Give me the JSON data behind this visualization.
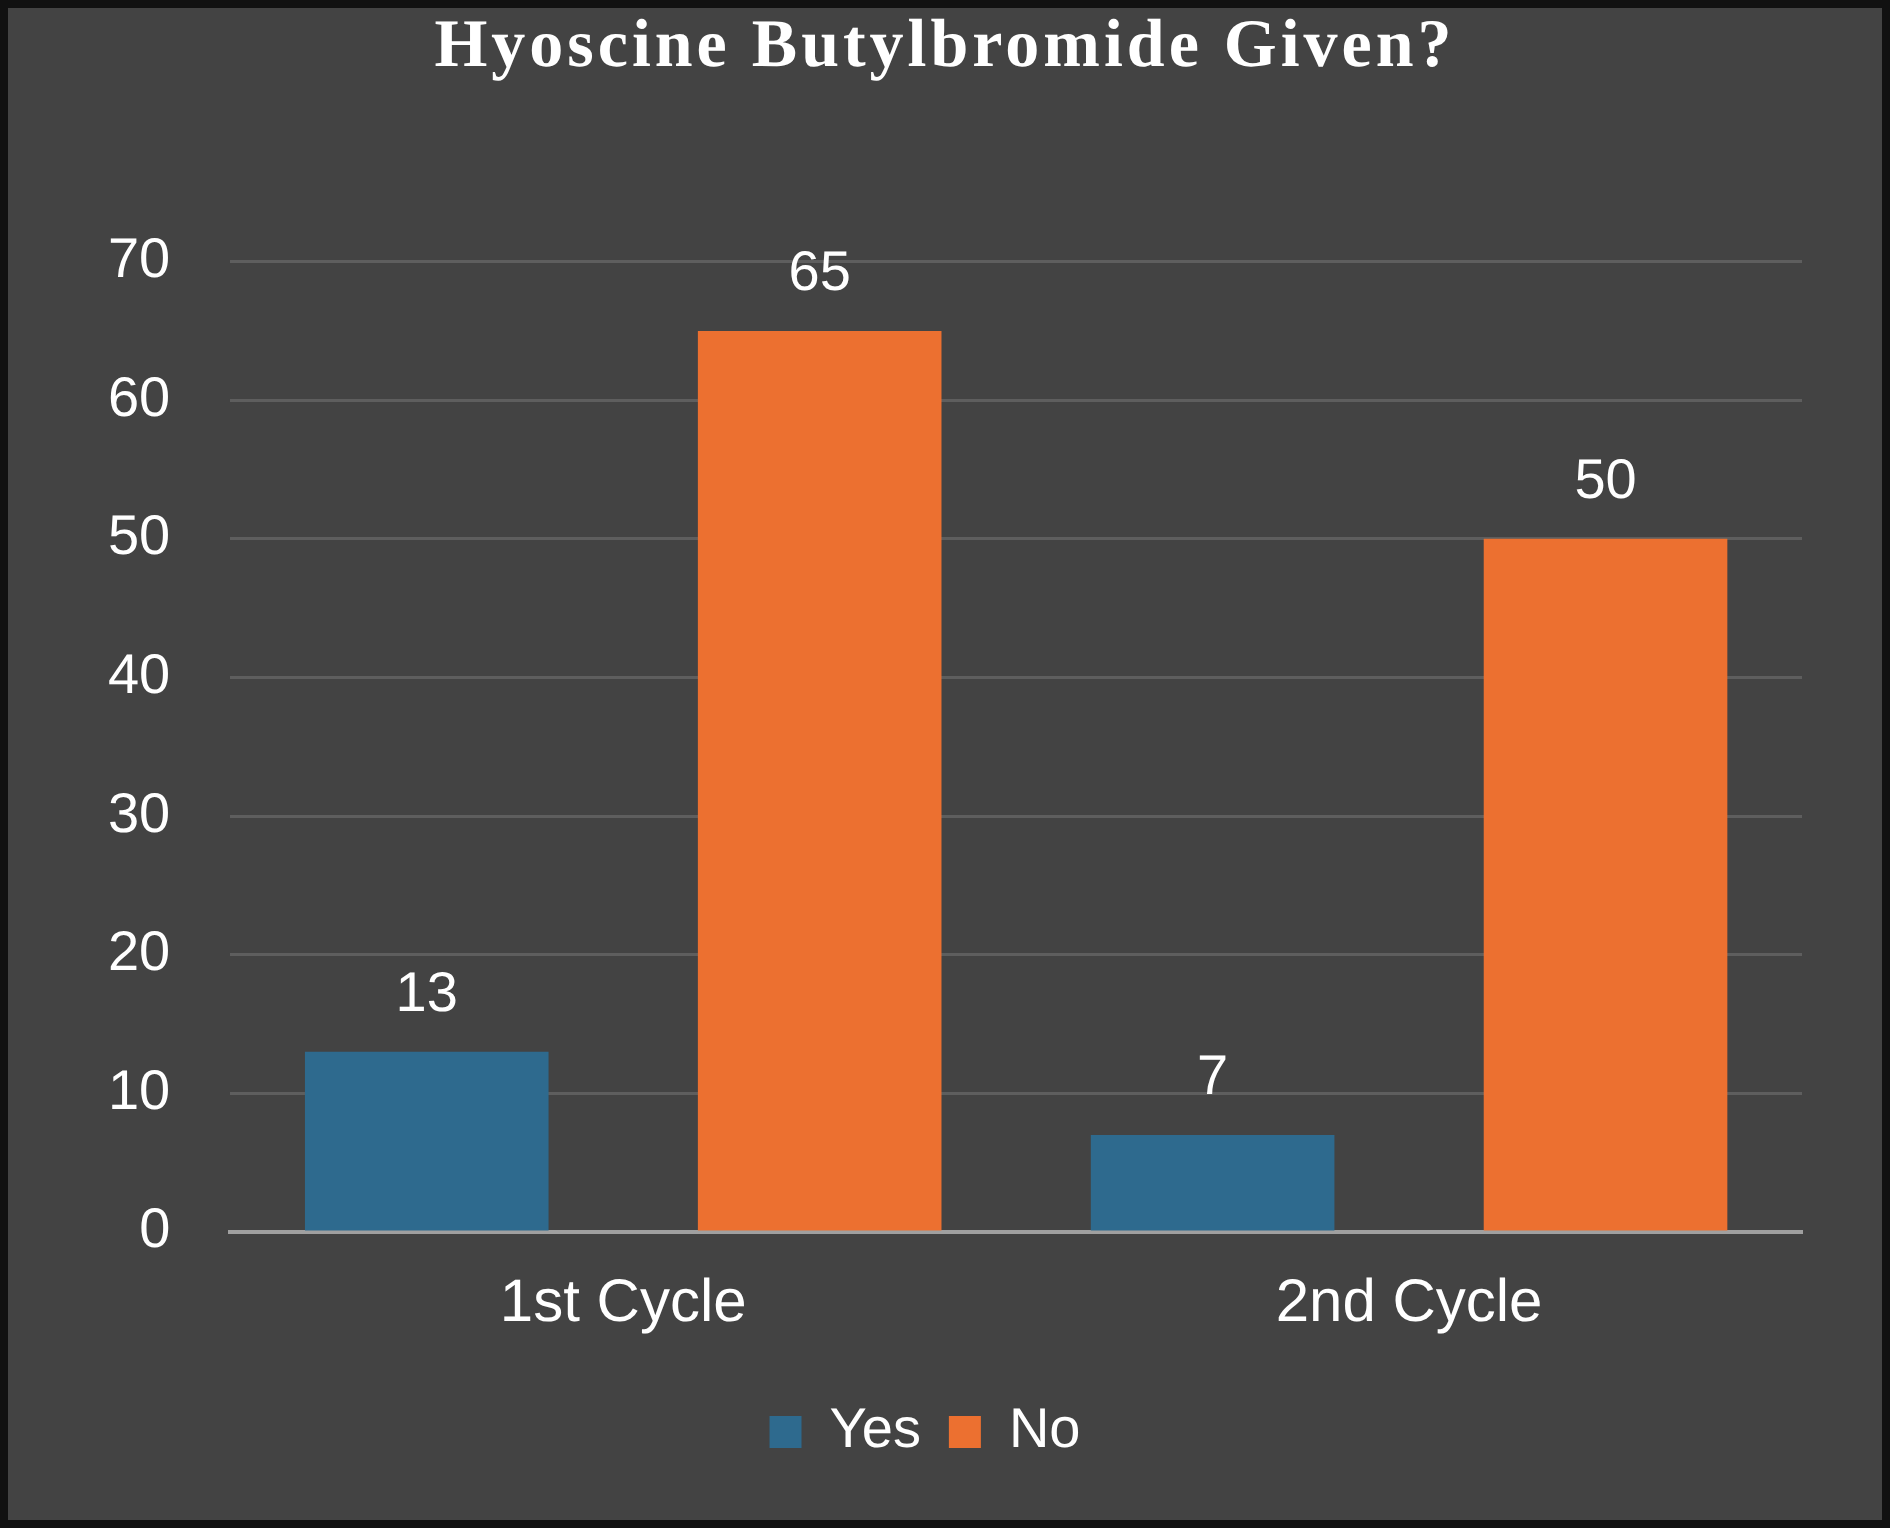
{
  "chart_data": {
    "type": "bar",
    "title": "Hyoscine Butylbromide Given?",
    "categories": [
      "1st Cycle",
      "2nd Cycle"
    ],
    "series": [
      {
        "name": "Yes",
        "color": "#2e6a8e",
        "values": [
          13,
          7
        ]
      },
      {
        "name": "No",
        "color": "#ec7030",
        "values": [
          65,
          50
        ]
      }
    ],
    "ylim": [
      0,
      70
    ],
    "yticks": [
      0,
      10,
      20,
      30,
      40,
      50,
      60,
      70
    ],
    "grid": "y",
    "legend": "bottom",
    "data_labels": true
  }
}
